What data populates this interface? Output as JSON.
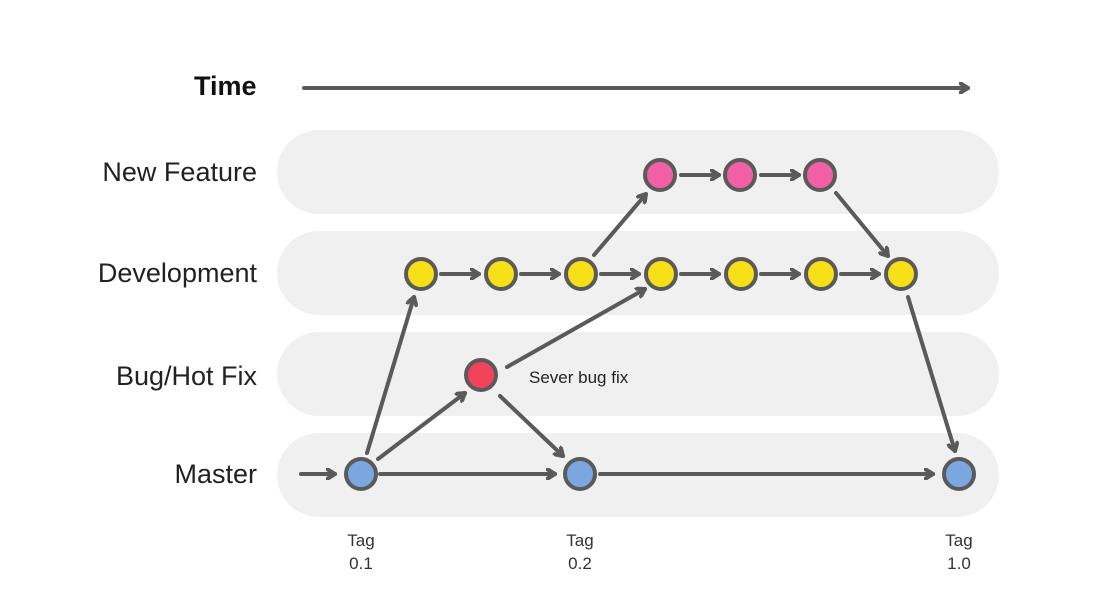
{
  "time_label": "Time",
  "lanes": [
    {
      "id": "new-feature",
      "label": "New Feature"
    },
    {
      "id": "development",
      "label": "Development"
    },
    {
      "id": "bug-hot-fix",
      "label": "Bug/Hot Fix"
    },
    {
      "id": "master",
      "label": "Master"
    }
  ],
  "annotation": "Sever bug fix",
  "tags": [
    {
      "line1": "Tag",
      "line2": "0.1"
    },
    {
      "line1": "Tag",
      "line2": "0.2"
    },
    {
      "line1": "Tag",
      "line2": "1.0"
    }
  ],
  "colors": {
    "lane_background": "#f0f0f0",
    "stroke": "#5a5a5a",
    "master_commit": "#7ba7e1",
    "development_commit": "#f7e017",
    "feature_commit": "#f25fa6",
    "bugfix_commit": "#f2435a"
  }
}
